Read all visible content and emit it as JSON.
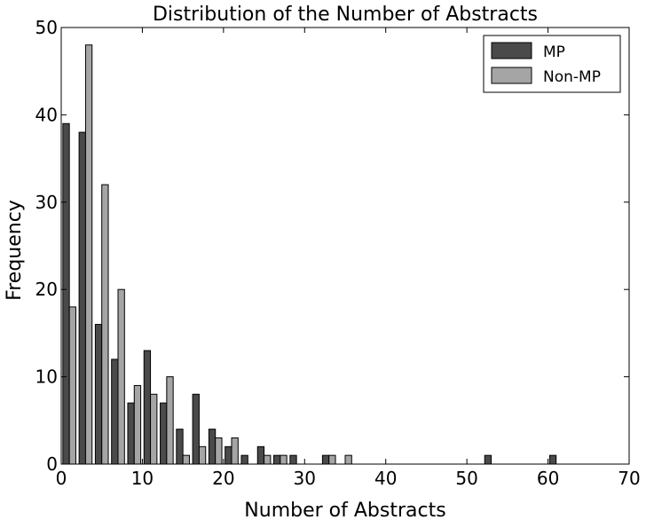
{
  "chart_data": {
    "type": "bar",
    "title": "Distribution of the Number of Abstracts",
    "xlabel": "Number of Abstracts",
    "ylabel": "Frequency",
    "xlim": [
      0,
      70
    ],
    "ylim": [
      0,
      50
    ],
    "xticks": [
      "0",
      "10",
      "20",
      "30",
      "40",
      "50",
      "60",
      "70"
    ],
    "yticks": [
      "0",
      "10",
      "20",
      "30",
      "40",
      "50"
    ],
    "bin_width": 2,
    "bin_starts": [
      0,
      2,
      4,
      6,
      8,
      10,
      12,
      14,
      16,
      18,
      20,
      22,
      24,
      26,
      28,
      30,
      32,
      34,
      36,
      38,
      40,
      42,
      44,
      46,
      48,
      50,
      52,
      54,
      56,
      58,
      60
    ],
    "series": [
      {
        "name": "MP",
        "color": "#4a4a4a",
        "values": [
          39,
          38,
          16,
          12,
          7,
          13,
          7,
          4,
          8,
          4,
          2,
          1,
          2,
          1,
          1,
          0,
          1,
          0,
          0,
          0,
          0,
          0,
          0,
          0,
          0,
          0,
          1,
          0,
          0,
          0,
          1
        ]
      },
      {
        "name": "Non-MP",
        "color": "#a5a5a5",
        "values": [
          18,
          48,
          32,
          20,
          9,
          8,
          10,
          1,
          2,
          3,
          3,
          0,
          1,
          1,
          0,
          0,
          1,
          1,
          0,
          0,
          0,
          0,
          0,
          0,
          0,
          0,
          0,
          0,
          0,
          0,
          0
        ]
      }
    ],
    "legend_position": "top-right",
    "grid": false
  }
}
